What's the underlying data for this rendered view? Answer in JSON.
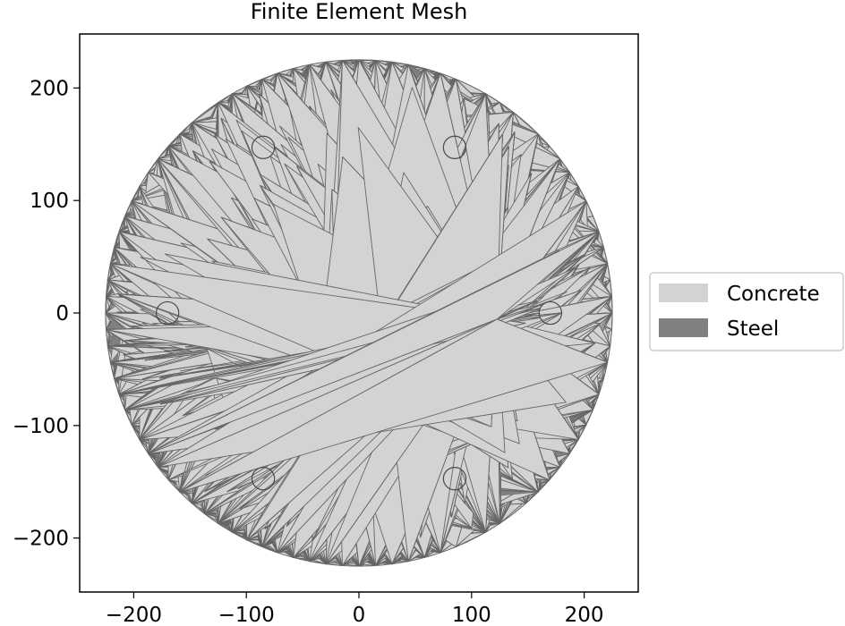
{
  "title": "Finite Element Mesh",
  "chart_data": {
    "type": "mesh",
    "title": "Finite Element Mesh",
    "xlim": [
      -248,
      248
    ],
    "ylim": [
      -248,
      248
    ],
    "x_ticks": [
      -200,
      -100,
      0,
      100,
      200
    ],
    "y_ticks": [
      -200,
      -100,
      0,
      100,
      200
    ],
    "x_tick_labels": [
      "−200",
      "−100",
      "0",
      "100",
      "200"
    ],
    "y_tick_labels": [
      "−200",
      "−100",
      "0",
      "100",
      "200"
    ],
    "section": {
      "shape": "circle",
      "center": [
        0,
        0
      ],
      "radius": 225,
      "material": "Concrete"
    },
    "bars": [
      {
        "x": 170,
        "y": 0,
        "radius": 10,
        "material": "Steel"
      },
      {
        "x": 85,
        "y": 147.2,
        "radius": 10,
        "material": "Steel"
      },
      {
        "x": -85,
        "y": 147.2,
        "radius": 10,
        "material": "Steel"
      },
      {
        "x": -170,
        "y": 0,
        "radius": 10,
        "material": "Steel"
      },
      {
        "x": -85,
        "y": -147.2,
        "radius": 10,
        "material": "Steel"
      },
      {
        "x": 85,
        "y": -147.2,
        "radius": 10,
        "material": "Steel"
      }
    ],
    "legend": {
      "placement": "right",
      "entries": [
        {
          "label": "Concrete",
          "color": "#d3d3d3"
        },
        {
          "label": "Steel",
          "color": "#808080"
        }
      ]
    },
    "colors": {
      "concrete": "#d3d3d3",
      "steel": "#808080",
      "edge": "#666666"
    }
  }
}
